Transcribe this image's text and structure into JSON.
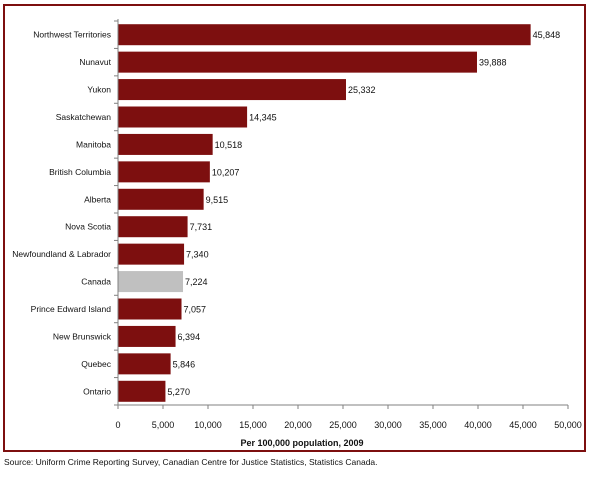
{
  "chart_data": {
    "type": "bar",
    "orientation": "horizontal",
    "categories": [
      "Northwest Territories",
      "Nunavut",
      "Yukon",
      "Saskatchewan",
      "Manitoba",
      "British Columbia",
      "Alberta",
      "Nova Scotia",
      "Newfoundland & Labrador",
      "Canada",
      "Prince Edward Island",
      "New Brunswick",
      "Quebec",
      "Ontario"
    ],
    "values": [
      45848,
      39888,
      25332,
      14345,
      10518,
      10207,
      9515,
      7731,
      7340,
      7224,
      7057,
      6394,
      5846,
      5270
    ],
    "value_labels": [
      "45,848",
      "39,888",
      "25,332",
      "14,345",
      "10,518",
      "10,207",
      "9,515",
      "7,731",
      "7,340",
      "7,224",
      "7,057",
      "6,394",
      "5,846",
      "5,270"
    ],
    "highlight_category": "Canada",
    "xlabel": "Per 100,000 population, 2009",
    "xlim": [
      0,
      50000
    ],
    "x_ticks": [
      0,
      5000,
      10000,
      15000,
      20000,
      25000,
      30000,
      35000,
      40000,
      45000,
      50000
    ],
    "x_tick_labels": [
      "0",
      "5,000",
      "10,000",
      "15,000",
      "20,000",
      "25,000",
      "30,000",
      "35,000",
      "40,000",
      "45,000",
      "50,000"
    ],
    "grid": false,
    "colors": {
      "bar": "#7d0f0f",
      "highlight_bar": "#c0c0c0",
      "frame": "#7d0f0f",
      "axis": "#808080"
    }
  },
  "source": "Source:  Uniform Crime Reporting Survey, Canadian Centre for Justice Statistics, Statistics Canada."
}
